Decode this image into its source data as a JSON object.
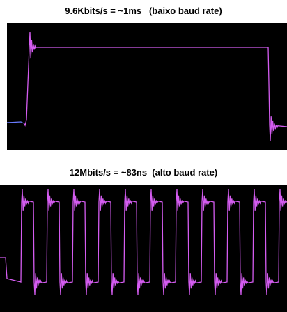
{
  "panels": [
    {
      "caption": "9.6Kbits/s = ~1ms   (baixo baud rate)"
    },
    {
      "caption": "12Mbits/s = ~83ns  (alto baud rate)"
    }
  ]
}
